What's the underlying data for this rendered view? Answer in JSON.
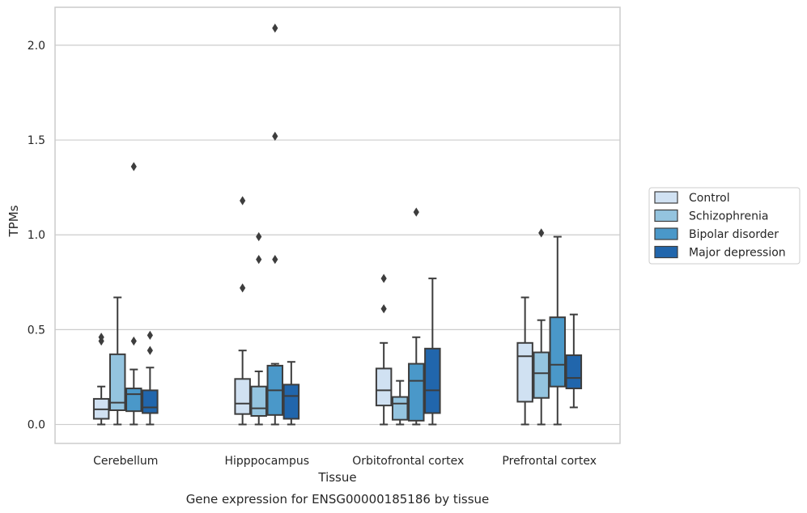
{
  "chart_data": {
    "type": "box",
    "caption": "Gene expression for ENSG00000185186 by tissue",
    "xlabel": "Tissue",
    "ylabel": "TPMs",
    "ylim": [
      -0.1,
      2.2
    ],
    "yticks": [
      0.0,
      0.5,
      1.0,
      1.5,
      2.0
    ],
    "ytick_labels": [
      "0.0",
      "0.5",
      "1.0",
      "1.5",
      "2.0"
    ],
    "grid": "horizontal",
    "legend_position": "right",
    "categories": [
      "Cerebellum",
      "Hipppocampus",
      "Orbitofrontal cortex",
      "Prefrontal cortex"
    ],
    "series": [
      {
        "name": "Control",
        "color": "#d0e1f2",
        "boxes": [
          {
            "whisker_low": 0.0,
            "q1": 0.03,
            "median": 0.08,
            "q3": 0.135,
            "whisker_high": 0.2,
            "outliers": [
              0.44,
              0.46
            ]
          },
          {
            "whisker_low": 0.0,
            "q1": 0.055,
            "median": 0.11,
            "q3": 0.24,
            "whisker_high": 0.39,
            "outliers": [
              0.72,
              1.18
            ]
          },
          {
            "whisker_low": 0.0,
            "q1": 0.1,
            "median": 0.18,
            "q3": 0.295,
            "whisker_high": 0.43,
            "outliers": [
              0.61,
              0.77
            ]
          },
          {
            "whisker_low": 0.0,
            "q1": 0.12,
            "median": 0.36,
            "q3": 0.43,
            "whisker_high": 0.67,
            "outliers": []
          }
        ]
      },
      {
        "name": "Schizophrenia",
        "color": "#94c4df",
        "boxes": [
          {
            "whisker_low": 0.0,
            "q1": 0.075,
            "median": 0.115,
            "q3": 0.37,
            "whisker_high": 0.67,
            "outliers": []
          },
          {
            "whisker_low": 0.0,
            "q1": 0.045,
            "median": 0.085,
            "q3": 0.2,
            "whisker_high": 0.28,
            "outliers": [
              0.87,
              0.99
            ]
          },
          {
            "whisker_low": 0.0,
            "q1": 0.025,
            "median": 0.11,
            "q3": 0.145,
            "whisker_high": 0.23,
            "outliers": []
          },
          {
            "whisker_low": 0.0,
            "q1": 0.14,
            "median": 0.27,
            "q3": 0.38,
            "whisker_high": 0.55,
            "outliers": [
              1.01
            ]
          }
        ]
      },
      {
        "name": "Bipolar disorder",
        "color": "#4a98c9",
        "boxes": [
          {
            "whisker_low": 0.0,
            "q1": 0.07,
            "median": 0.16,
            "q3": 0.19,
            "whisker_high": 0.29,
            "outliers": [
              0.44,
              1.36
            ]
          },
          {
            "whisker_low": 0.0,
            "q1": 0.05,
            "median": 0.18,
            "q3": 0.31,
            "whisker_high": 0.32,
            "outliers": [
              0.87,
              1.52,
              2.09
            ]
          },
          {
            "whisker_low": 0.0,
            "q1": 0.02,
            "median": 0.23,
            "q3": 0.32,
            "whisker_high": 0.46,
            "outliers": [
              1.12
            ]
          },
          {
            "whisker_low": 0.0,
            "q1": 0.2,
            "median": 0.315,
            "q3": 0.565,
            "whisker_high": 0.99,
            "outliers": []
          }
        ]
      },
      {
        "name": "Major depression",
        "color": "#2166ac",
        "boxes": [
          {
            "whisker_low": 0.0,
            "q1": 0.06,
            "median": 0.09,
            "q3": 0.18,
            "whisker_high": 0.3,
            "outliers": [
              0.39,
              0.47
            ]
          },
          {
            "whisker_low": 0.0,
            "q1": 0.03,
            "median": 0.15,
            "q3": 0.21,
            "whisker_high": 0.33,
            "outliers": []
          },
          {
            "whisker_low": 0.0,
            "q1": 0.06,
            "median": 0.18,
            "q3": 0.4,
            "whisker_high": 0.77,
            "outliers": []
          },
          {
            "whisker_low": 0.09,
            "q1": 0.19,
            "median": 0.245,
            "q3": 0.365,
            "whisker_high": 0.58,
            "outliers": []
          }
        ]
      }
    ]
  }
}
